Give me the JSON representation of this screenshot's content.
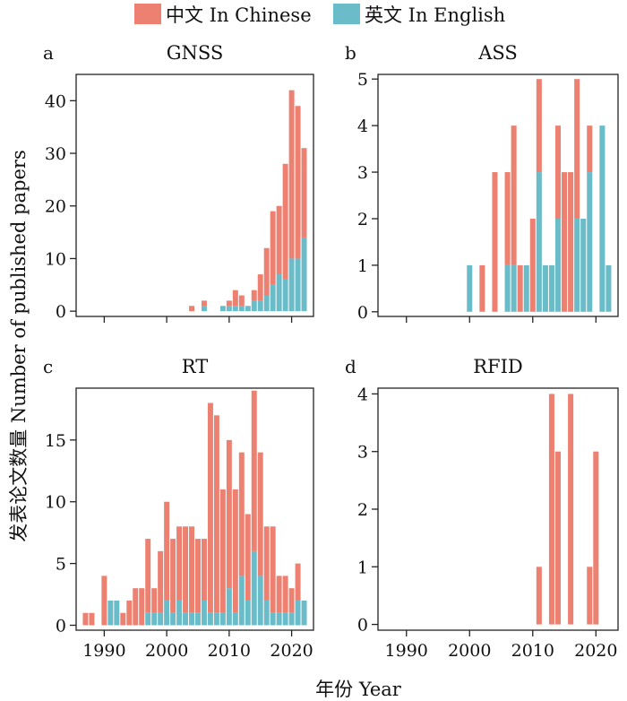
{
  "legend": {
    "position": "top-center",
    "items": [
      {
        "label": "中文 In Chinese",
        "color": "#ec8172"
      },
      {
        "label": "英文 In English",
        "color": "#6bbcc9"
      }
    ]
  },
  "ylabel": "发表论文数量 Number of published papers",
  "xlabel": "年份 Year",
  "colors": {
    "chinese": "#ec8172",
    "english": "#6bbcc9"
  },
  "chart_data": [
    {
      "type": "bar",
      "panel_letter": "a",
      "title": "GNSS",
      "stacked": true,
      "xlim": [
        1985.5,
        2023.5
      ],
      "ylim": [
        -1,
        45
      ],
      "xticks": [
        1990,
        2000,
        2010,
        2020
      ],
      "yticks": [
        0,
        10,
        20,
        30,
        40
      ],
      "show_xtick_labels": false,
      "x": [
        2004,
        2005,
        2006,
        2007,
        2008,
        2009,
        2010,
        2011,
        2012,
        2013,
        2014,
        2015,
        2016,
        2017,
        2018,
        2019,
        2020,
        2021,
        2022
      ],
      "series": [
        {
          "name": "英文 In English",
          "values": [
            0,
            0,
            1,
            0,
            0,
            1,
            1,
            1,
            1,
            1,
            2,
            2,
            3,
            5,
            7,
            6,
            10,
            10,
            14
          ]
        },
        {
          "name": "中文 In Chinese",
          "values": [
            1,
            0,
            1,
            0,
            0,
            0,
            1,
            3,
            2,
            0,
            2,
            5,
            9,
            14,
            13,
            22,
            32,
            29,
            17
          ]
        }
      ]
    },
    {
      "type": "bar",
      "panel_letter": "b",
      "title": "ASS",
      "stacked": true,
      "xlim": [
        1985.5,
        2023.5
      ],
      "ylim": [
        -0.1,
        5.1
      ],
      "xticks": [
        1990,
        2000,
        2010,
        2020
      ],
      "yticks": [
        0,
        1,
        2,
        3,
        4,
        5
      ],
      "show_xtick_labels": false,
      "x": [
        2000,
        2001,
        2002,
        2003,
        2004,
        2005,
        2006,
        2007,
        2008,
        2009,
        2010,
        2011,
        2012,
        2013,
        2014,
        2015,
        2016,
        2017,
        2018,
        2019,
        2020,
        2021,
        2022
      ],
      "series": [
        {
          "name": "英文 In English",
          "values": [
            1,
            0,
            0,
            0,
            0,
            0,
            1,
            1,
            0,
            1,
            0,
            3,
            1,
            1,
            2,
            0,
            0,
            2,
            2,
            3,
            0,
            4,
            1
          ]
        },
        {
          "name": "中文 In Chinese",
          "values": [
            0,
            0,
            1,
            0,
            3,
            0,
            2,
            3,
            1,
            0,
            2,
            2,
            0,
            0,
            2,
            3,
            3,
            3,
            0,
            1,
            0,
            0,
            0
          ]
        }
      ]
    },
    {
      "type": "bar",
      "panel_letter": "c",
      "title": "RT",
      "stacked": true,
      "xlim": [
        1985.5,
        2023.5
      ],
      "ylim": [
        -0.4,
        19.2
      ],
      "xticks": [
        1990,
        2000,
        2010,
        2020
      ],
      "yticks": [
        0,
        5,
        10,
        15
      ],
      "show_xtick_labels": true,
      "x": [
        1987,
        1988,
        1989,
        1990,
        1991,
        1992,
        1993,
        1994,
        1995,
        1996,
        1997,
        1998,
        1999,
        2000,
        2001,
        2002,
        2003,
        2004,
        2005,
        2006,
        2007,
        2008,
        2009,
        2010,
        2011,
        2012,
        2013,
        2014,
        2015,
        2016,
        2017,
        2018,
        2019,
        2020,
        2021,
        2022
      ],
      "series": [
        {
          "name": "英文 In English",
          "values": [
            0,
            0,
            0,
            0,
            2,
            2,
            0,
            0,
            0,
            0,
            1,
            1,
            1,
            2,
            1,
            2,
            1,
            1,
            1,
            2,
            1,
            1,
            1,
            3,
            1,
            4,
            2,
            6,
            4,
            2,
            1,
            1,
            1,
            1,
            2,
            2
          ]
        },
        {
          "name": "中文 In Chinese",
          "values": [
            1,
            1,
            0,
            4,
            0,
            0,
            1,
            2,
            3,
            3,
            6,
            2,
            5,
            8,
            6,
            6,
            7,
            7,
            6,
            5,
            17,
            16,
            10,
            12,
            10,
            10,
            7,
            13,
            10,
            6,
            7,
            3,
            3,
            2,
            3,
            0
          ]
        }
      ]
    },
    {
      "type": "bar",
      "panel_letter": "d",
      "title": "RFID",
      "stacked": true,
      "xlim": [
        1985.5,
        2023.5
      ],
      "ylim": [
        -0.1,
        4.1
      ],
      "xticks": [
        1990,
        2000,
        2010,
        2020
      ],
      "yticks": [
        0,
        1,
        2,
        3,
        4
      ],
      "show_xtick_labels": true,
      "x": [
        2011,
        2013,
        2014,
        2016,
        2019,
        2020
      ],
      "series": [
        {
          "name": "英文 In English",
          "values": [
            0,
            0,
            0,
            0,
            0,
            0
          ]
        },
        {
          "name": "中文 In Chinese",
          "values": [
            1,
            4,
            3,
            4,
            1,
            3
          ]
        }
      ]
    }
  ]
}
